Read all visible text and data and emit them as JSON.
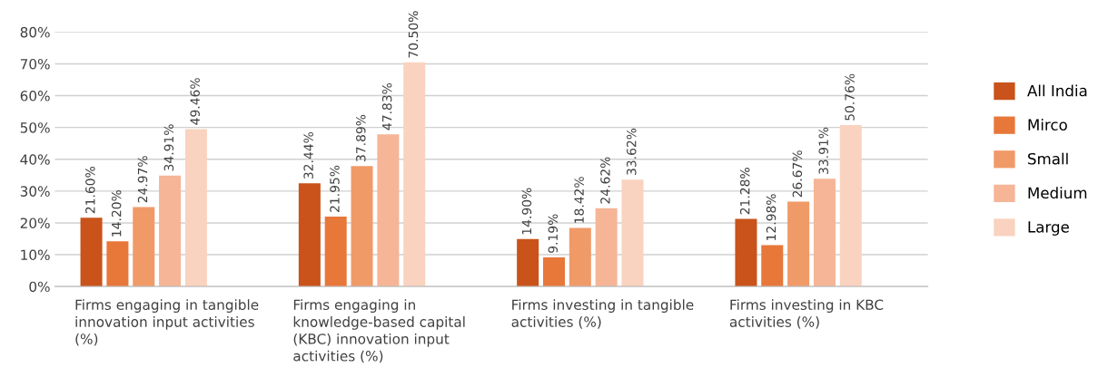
{
  "chart_data": {
    "type": "bar",
    "categories": [
      "Firms engaging in tangible innovation input activities (%)",
      "Firms engaging in knowledge-based capital (KBC) innovation input activities (%)",
      "Firms investing in tangible activities (%)",
      "Firms investing in KBC activities (%)"
    ],
    "series": [
      {
        "name": "All India",
        "color": "#c9531a",
        "values": [
          21.6,
          32.44,
          14.9,
          21.28
        ],
        "value_labels": [
          "21.60%",
          "32.44%",
          "14.90%",
          "21.28%"
        ]
      },
      {
        "name": "Mirco",
        "color": "#e8773a",
        "values": [
          14.2,
          21.95,
          9.19,
          12.98
        ],
        "value_labels": [
          "14.20%",
          "21.95%",
          "9.19%",
          "12.98%"
        ]
      },
      {
        "name": "Small",
        "color": "#f09a68",
        "values": [
          24.97,
          37.89,
          18.42,
          26.67
        ],
        "value_labels": [
          "24.97%",
          "37.89%",
          "18.42%",
          "26.67%"
        ]
      },
      {
        "name": "Medium",
        "color": "#f5b596",
        "values": [
          34.91,
          47.83,
          24.62,
          33.91
        ],
        "value_labels": [
          "34.91%",
          "47.83%",
          "24.62%",
          "33.91%"
        ]
      },
      {
        "name": "Large",
        "color": "#f9d3bf",
        "values": [
          49.46,
          70.5,
          33.62,
          50.76
        ],
        "value_labels": [
          "49.46%",
          "70.50%",
          "33.62%",
          "50.76%"
        ]
      }
    ],
    "ylim": [
      0,
      80
    ],
    "yticks": [
      {
        "value": 0,
        "label": "0%"
      },
      {
        "value": 10,
        "label": "10%"
      },
      {
        "value": 20,
        "label": "20%"
      },
      {
        "value": 30,
        "label": "30%"
      },
      {
        "value": 40,
        "label": "40%"
      },
      {
        "value": 50,
        "label": "50%"
      },
      {
        "value": 60,
        "label": "60%"
      },
      {
        "value": 70,
        "label": "70%"
      },
      {
        "value": 80,
        "label": "80%"
      }
    ],
    "grid": "y",
    "legend": "right"
  }
}
